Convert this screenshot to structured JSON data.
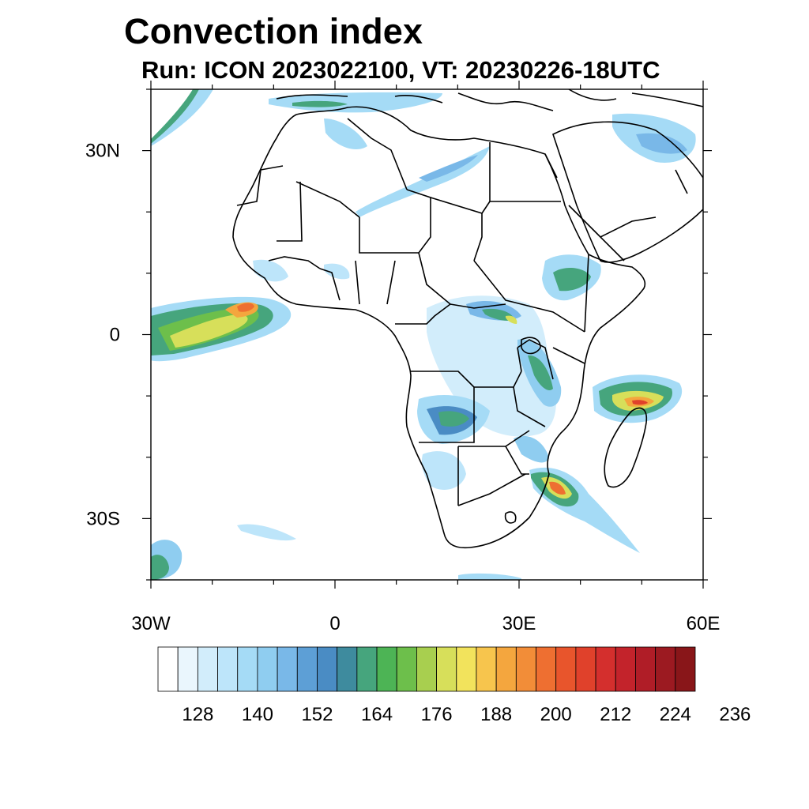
{
  "title": "Convection index",
  "subtitle": "Run: ICON 2023022100,  VT: 20230226-18UTC",
  "map": {
    "lon_range": [
      -30,
      60
    ],
    "lat_range": [
      -40,
      40
    ],
    "lon_ticks": [
      {
        "value": -30,
        "label": "30W"
      },
      {
        "value": 0,
        "label": "0"
      },
      {
        "value": 30,
        "label": "30E"
      },
      {
        "value": 60,
        "label": "60E"
      }
    ],
    "lat_ticks": [
      {
        "value": 30,
        "label": "30N"
      },
      {
        "value": 0,
        "label": "0"
      },
      {
        "value": -30,
        "label": "30S"
      }
    ]
  },
  "colorbar": {
    "colors": [
      "#ffffff",
      "#eaf6fd",
      "#d2edfb",
      "#bde5fa",
      "#a5dbf6",
      "#8fcdf0",
      "#79b8e8",
      "#5d9fd6",
      "#4a8cc4",
      "#3e8b9e",
      "#46a57d",
      "#4db455",
      "#6dbf4b",
      "#a8cf4f",
      "#d7df5a",
      "#f2e35c",
      "#f7c54d",
      "#f4a63e",
      "#f28d38",
      "#ee6f31",
      "#e8552c",
      "#e0412b",
      "#d42f2d",
      "#c3232b",
      "#b01d27",
      "#9c1a21",
      "#891619"
    ],
    "tick_labels": [
      "128",
      "140",
      "152",
      "164",
      "176",
      "188",
      "200",
      "212",
      "224",
      "236"
    ]
  }
}
